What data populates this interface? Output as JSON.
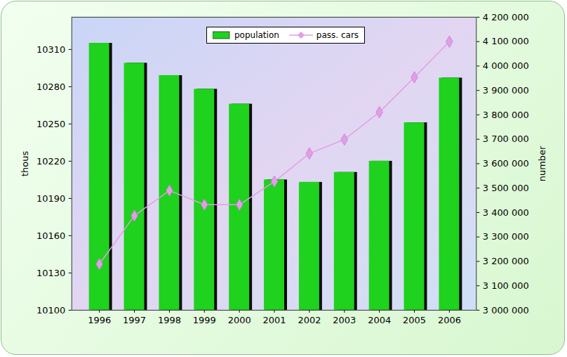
{
  "chart_data": {
    "type": "bar",
    "categories": [
      "1996",
      "1997",
      "1998",
      "1999",
      "2000",
      "2001",
      "2002",
      "2003",
      "2004",
      "2005",
      "2006"
    ],
    "ylabel": "thous",
    "y2label": "number",
    "ylim": [
      10100,
      10336
    ],
    "yticks": [
      10100,
      10130,
      10160,
      10190,
      10220,
      10250,
      10280,
      10310
    ],
    "y2lim": [
      3000000,
      4200000
    ],
    "y2ticks": [
      {
        "value": 3000000,
        "label": "3 000 000"
      },
      {
        "value": 3100000,
        "label": "3 100 000"
      },
      {
        "value": 3200000,
        "label": "3 200 000"
      },
      {
        "value": 3300000,
        "label": "3 300 000"
      },
      {
        "value": 3400000,
        "label": "3 400 000"
      },
      {
        "value": 3500000,
        "label": "3 500 000"
      },
      {
        "value": 3600000,
        "label": "3 600 000"
      },
      {
        "value": 3700000,
        "label": "3 700 000"
      },
      {
        "value": 3800000,
        "label": "3 800 000"
      },
      {
        "value": 3900000,
        "label": "3 900 000"
      },
      {
        "value": 4000000,
        "label": "4 000 000"
      },
      {
        "value": 4100000,
        "label": "4 100 000"
      },
      {
        "value": 4200000,
        "label": "4 200 000"
      }
    ],
    "grid": false,
    "legend": "top",
    "series": [
      {
        "name": "population",
        "type": "bar",
        "color": "#1ed21e",
        "values": [
          10315,
          10299,
          10289,
          10278,
          10266,
          10205,
          10203,
          10211,
          10220,
          10251,
          10287
        ]
      },
      {
        "name": "pass. cars",
        "type": "line",
        "axis": "y2",
        "color": "#e29ee6",
        "marker": "diamond",
        "values": [
          3189000,
          3387000,
          3490000,
          3432000,
          3432000,
          3527000,
          3642000,
          3699000,
          3811000,
          3954000,
          4100000
        ]
      }
    ]
  }
}
